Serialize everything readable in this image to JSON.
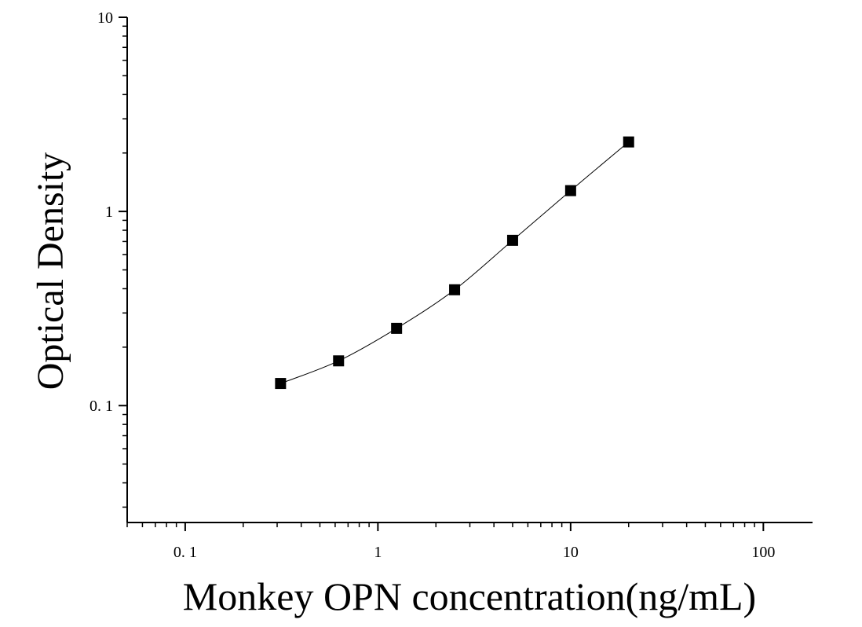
{
  "chart_data": {
    "type": "scatter",
    "title": "",
    "xlabel": "Monkey OPN concentration(ng/mL)",
    "ylabel": "Optical Density",
    "x_scale": "log",
    "y_scale": "log",
    "xlim": [
      0.05,
      180
    ],
    "ylim": [
      0.025,
      10
    ],
    "x_ticks": [
      0.1,
      1,
      10,
      100
    ],
    "x_tick_labels": [
      "0. 1",
      "1",
      "10",
      "100"
    ],
    "y_ticks": [
      0.1,
      1,
      10
    ],
    "y_tick_labels": [
      "0. 1",
      "1",
      "10"
    ],
    "grid": false,
    "legend": "none",
    "marker": "square",
    "fit_line": true,
    "color": "#000000",
    "series": [
      {
        "x": [
          0.3125,
          0.625,
          1.25,
          2.5,
          5,
          10,
          20
        ],
        "y": [
          0.13,
          0.17,
          0.25,
          0.395,
          0.71,
          1.28,
          2.28
        ]
      }
    ]
  }
}
